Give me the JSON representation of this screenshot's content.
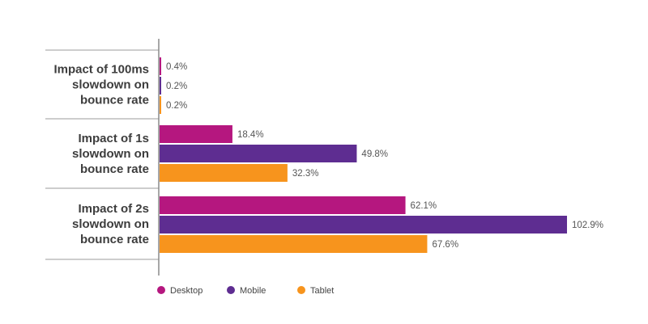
{
  "chart_data": {
    "type": "bar",
    "orientation": "horizontal",
    "categories": [
      [
        "Impact of 100ms",
        "slowdown on",
        "bounce rate"
      ],
      [
        "Impact of 1s",
        "slowdown on",
        "bounce rate"
      ],
      [
        "Impact of 2s",
        "slowdown on",
        "bounce rate"
      ]
    ],
    "series": [
      {
        "name": "Desktop",
        "color": "#b5177f",
        "values": [
          0.4,
          18.4,
          62.1
        ],
        "labels": [
          "0.4%",
          "18.4%",
          "62.1%"
        ]
      },
      {
        "name": "Mobile",
        "color": "#5e2d91",
        "values": [
          0.2,
          49.8,
          102.9
        ],
        "labels": [
          "0.2%",
          "49.8%",
          "102.9%"
        ]
      },
      {
        "name": "Tablet",
        "color": "#f7941d",
        "values": [
          0.2,
          32.3,
          67.6
        ],
        "labels": [
          "0.2%",
          "32.3%",
          "67.6%"
        ]
      }
    ],
    "xlim": [
      0,
      102.9
    ],
    "legend": "bottom-left",
    "grid": false
  }
}
